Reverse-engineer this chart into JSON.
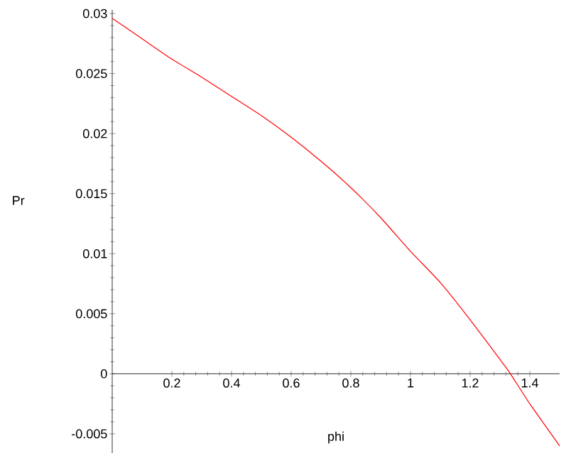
{
  "chart_data": {
    "type": "line",
    "xlabel": "phi",
    "ylabel": "Pr",
    "x": [
      0,
      0.1,
      0.2,
      0.3,
      0.4,
      0.5,
      0.6,
      0.7,
      0.8,
      0.9,
      1.0,
      1.1,
      1.2,
      1.3,
      1.335,
      1.4,
      1.5
    ],
    "series": [
      {
        "color": "#ff0000",
        "values": [
          0.0296,
          0.0279,
          0.0262,
          0.0247,
          0.0231,
          0.0215,
          0.0197,
          0.0177,
          0.0155,
          0.013,
          0.0102,
          0.0076,
          0.0045,
          0.0012,
          0.0,
          -0.0025,
          -0.006
        ]
      }
    ],
    "xlim": [
      0,
      1.5
    ],
    "ylim": [
      -0.0066,
      0.0303
    ],
    "xticks": [
      0.2,
      0.4,
      0.6,
      0.8,
      1,
      1.2,
      1.4
    ],
    "yticks": [
      -0.005,
      0,
      0.005,
      0.01,
      0.015,
      0.02,
      0.025,
      0.03
    ],
    "grid": false,
    "marker": "none",
    "line_style": "solid"
  }
}
